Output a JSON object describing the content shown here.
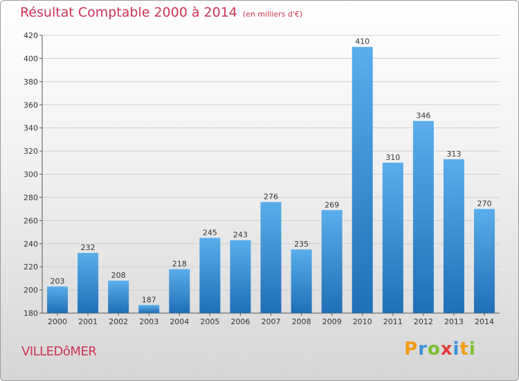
{
  "title": "Résultat Comptable 2000 à 2014",
  "subtitle": "(en milliers d'€)",
  "commune": "VILLEDôMER",
  "logo": {
    "text": "Proxiti",
    "letters": [
      {
        "ch": "P",
        "color": "#f39c12"
      },
      {
        "ch": "r",
        "color": "#3a8fd6"
      },
      {
        "ch": "o",
        "color": "#7cbf2f"
      },
      {
        "ch": "x",
        "color": "#e23b3b"
      },
      {
        "ch": "i",
        "color": "#3a8fd6"
      },
      {
        "ch": "t",
        "color": "#f39c12"
      },
      {
        "ch": "i",
        "color": "#7cbf2f"
      }
    ]
  },
  "colors": {
    "bar_light": "#5aaeeb",
    "bar_dark": "#1f6fb6",
    "title": "#cc3355",
    "grid": "#cfcfcf"
  },
  "chart_data": {
    "type": "bar",
    "categories": [
      "2000",
      "2001",
      "2002",
      "2003",
      "2004",
      "2005",
      "2006",
      "2007",
      "2008",
      "2009",
      "2010",
      "2011",
      "2012",
      "2013",
      "2014"
    ],
    "values": [
      203,
      232,
      208,
      187,
      218,
      245,
      243,
      276,
      235,
      269,
      410,
      310,
      346,
      313,
      270
    ],
    "title": "Résultat Comptable 2000 à 2014",
    "xlabel": "",
    "ylabel": "",
    "ylim": [
      180,
      420
    ],
    "yticks": [
      180,
      200,
      220,
      240,
      260,
      280,
      300,
      320,
      340,
      360,
      380,
      400,
      420
    ],
    "grid": true,
    "data_labels": true
  }
}
